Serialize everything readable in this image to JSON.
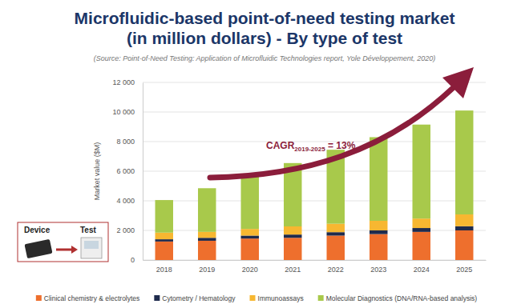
{
  "chart_data": {
    "type": "bar",
    "stacked": true,
    "title": "Microfluidic-based point-of-need testing market (in million dollars) - By type of test",
    "subtitle": "(Source: Point-of-Need Testing: Application of Microfluidic Technologies report, Yole Développement, 2020)",
    "y_label": "Market value ($M)",
    "categories": [
      "2018",
      "2019",
      "2020",
      "2021",
      "2022",
      "2023",
      "2024",
      "2025"
    ],
    "series": [
      {
        "name": "Clinical chemistry & electrolytes",
        "color": "#ee6f2d",
        "values": [
          1250,
          1300,
          1450,
          1500,
          1650,
          1750,
          1900,
          2000
        ]
      },
      {
        "name": "Cytometry / Hematology",
        "color": "#1f2b4d",
        "values": [
          150,
          200,
          200,
          220,
          230,
          250,
          260,
          280
        ]
      },
      {
        "name": "Immunoassays",
        "color": "#f7b731",
        "values": [
          450,
          400,
          450,
          550,
          570,
          650,
          640,
          800
        ]
      },
      {
        "name": "Molecular Diagnostics (DNA/RNA-based analysis)",
        "color": "#a8c94b",
        "values": [
          2200,
          2950,
          3600,
          4280,
          5000,
          5650,
          6350,
          7020
        ]
      }
    ],
    "ylim": [
      0,
      12000
    ],
    "yticks": [
      0,
      {
        "value": 2000,
        "label": "2 000"
      },
      {
        "value": 4000,
        "label": "4 000"
      },
      {
        "value": 6000,
        "label": "6 000"
      },
      {
        "value": 8000,
        "label": "8 000"
      },
      {
        "value": 10000,
        "label": "10 000"
      },
      {
        "value": 12000,
        "label": "12 000"
      }
    ],
    "grid": true,
    "legend": "bottom",
    "annotations": [
      {
        "text": "CAGR",
        "subscript": "2019-2025",
        "suffix": " = 13%"
      },
      {
        "text": "Device"
      },
      {
        "text": "Test"
      }
    ]
  }
}
